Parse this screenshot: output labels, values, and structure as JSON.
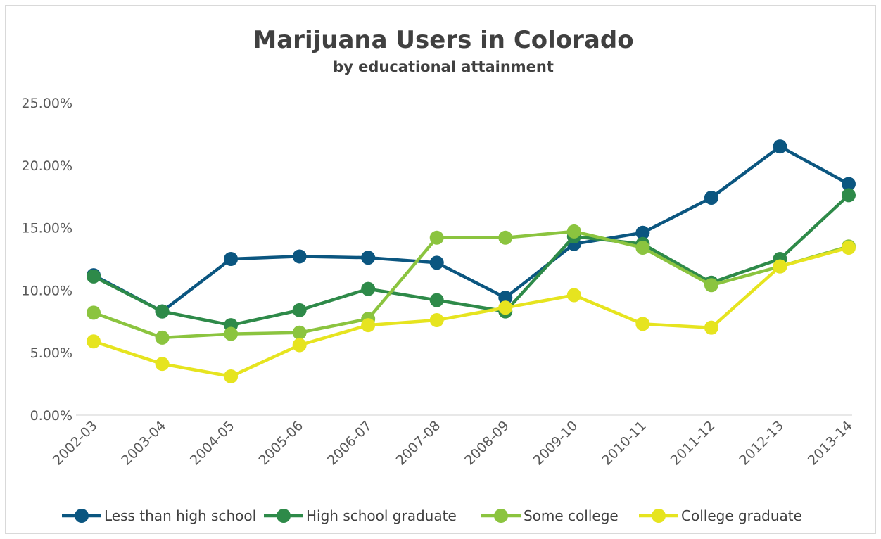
{
  "chart_data": {
    "type": "line",
    "title": "Marijuana Users in Colorado",
    "subtitle": "by educational attainment",
    "xlabel": "",
    "ylabel": "",
    "categories": [
      "2002-03",
      "2003-04",
      "2004-05",
      "2005-06",
      "2006-07",
      "2007-08",
      "2008-09",
      "2009-10",
      "2010-11",
      "2011-12",
      "2012-13",
      "2013-14"
    ],
    "y_ticks": [
      "0.00%",
      "5.00%",
      "10.00%",
      "15.00%",
      "20.00%",
      "25.00%"
    ],
    "ylim": [
      0,
      25
    ],
    "grid": false,
    "legend_position": "bottom",
    "series": [
      {
        "name": "Less than high school",
        "color": "#0b5680",
        "values": [
          11.2,
          8.3,
          12.5,
          12.7,
          12.6,
          12.2,
          9.4,
          13.7,
          14.6,
          17.4,
          21.5,
          18.5
        ]
      },
      {
        "name": "High school graduate",
        "color": "#2e8a49",
        "values": [
          11.1,
          8.3,
          7.2,
          8.4,
          10.1,
          9.2,
          8.3,
          14.3,
          13.7,
          10.6,
          12.5,
          17.6
        ]
      },
      {
        "name": "Some college",
        "color": "#8bc43f",
        "values": [
          8.2,
          6.2,
          6.5,
          6.6,
          7.7,
          14.2,
          14.2,
          14.7,
          13.4,
          10.4,
          11.9,
          13.5
        ]
      },
      {
        "name": "College graduate",
        "color": "#e6e41f",
        "values": [
          5.9,
          4.1,
          3.1,
          5.6,
          7.2,
          7.6,
          8.6,
          9.6,
          7.3,
          7.0,
          11.9,
          13.4
        ]
      }
    ]
  }
}
